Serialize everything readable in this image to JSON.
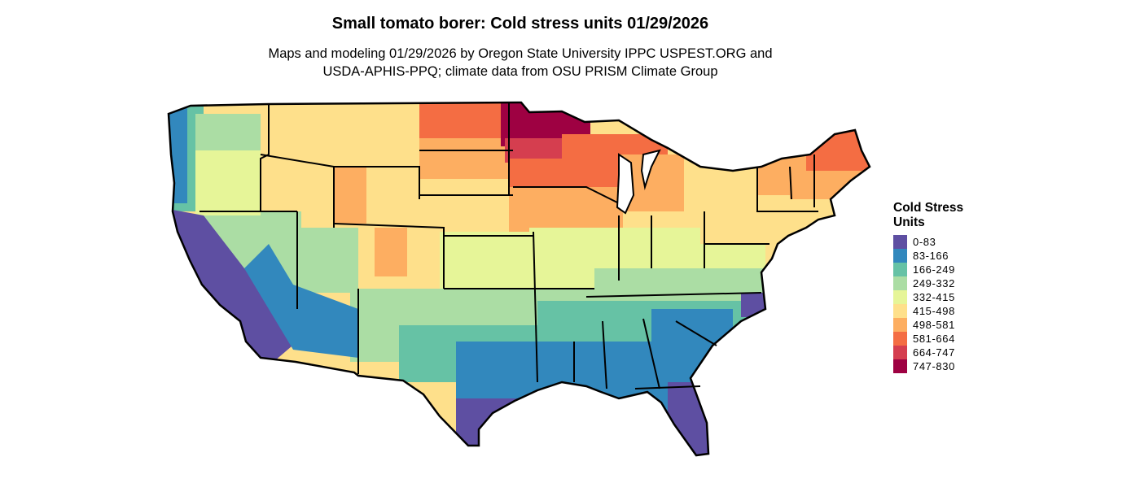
{
  "title": "Small tomato borer: Cold stress units 01/29/2026",
  "subtitle_lines": [
    "Maps and modeling 01/29/2026 by Oregon State University IPPC USPEST.ORG and",
    "USDA-APHIS-PPQ; climate data from OSU PRISM Climate Group"
  ],
  "legend": {
    "title": "Cold Stress Units",
    "items": [
      {
        "label": "0-83",
        "color": "#5e4fa2"
      },
      {
        "label": "83-166",
        "color": "#3288bd"
      },
      {
        "label": "166-249",
        "color": "#66c2a5"
      },
      {
        "label": "249-332",
        "color": "#abdda4"
      },
      {
        "label": "332-415",
        "color": "#e6f598"
      },
      {
        "label": "415-498",
        "color": "#fee08b"
      },
      {
        "label": "498-581",
        "color": "#fdae61"
      },
      {
        "label": "581-664",
        "color": "#f46d43"
      },
      {
        "label": "664-747",
        "color": "#d53e4f"
      },
      {
        "label": "747-830",
        "color": "#9e0142"
      }
    ]
  }
}
